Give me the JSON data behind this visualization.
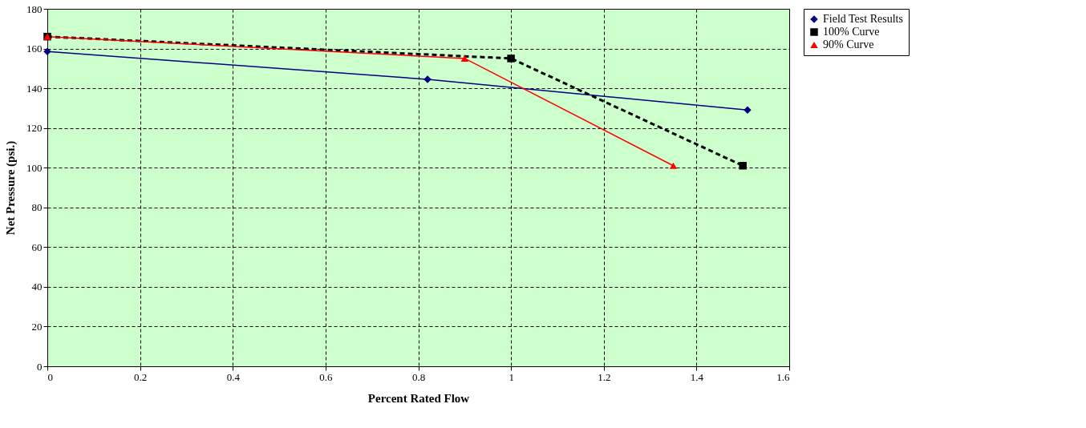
{
  "chart_data": {
    "type": "line",
    "xlabel": "Percent Rated Flow",
    "ylabel": "Net Pressure (psi.)",
    "xlim": [
      0,
      1.6
    ],
    "xticks": [
      0,
      0.2,
      0.4,
      0.6,
      0.8,
      1,
      1.2,
      1.4,
      1.6
    ],
    "ylim": [
      0,
      180
    ],
    "yticks": [
      0,
      20,
      40,
      60,
      80,
      100,
      120,
      140,
      160,
      180
    ],
    "grid": true,
    "legend": "top right",
    "series": [
      {
        "name": "Field Test Results",
        "color": "#000080",
        "marker": "diamond",
        "line_style": "solid",
        "x": [
          0,
          0.82,
          1.51
        ],
        "values": [
          158.5,
          144.5,
          129
        ]
      },
      {
        "name": "100% Curve",
        "color": "#000000",
        "marker": "square",
        "line_style": "dashed",
        "x": [
          0,
          1,
          1.5
        ],
        "values": [
          166,
          155,
          101
        ]
      },
      {
        "name": "90% Curve",
        "color": "#ff0000",
        "marker": "triangle",
        "line_style": "solid",
        "x": [
          0,
          0.9,
          1.35
        ],
        "values": [
          166,
          155,
          101
        ]
      }
    ]
  }
}
